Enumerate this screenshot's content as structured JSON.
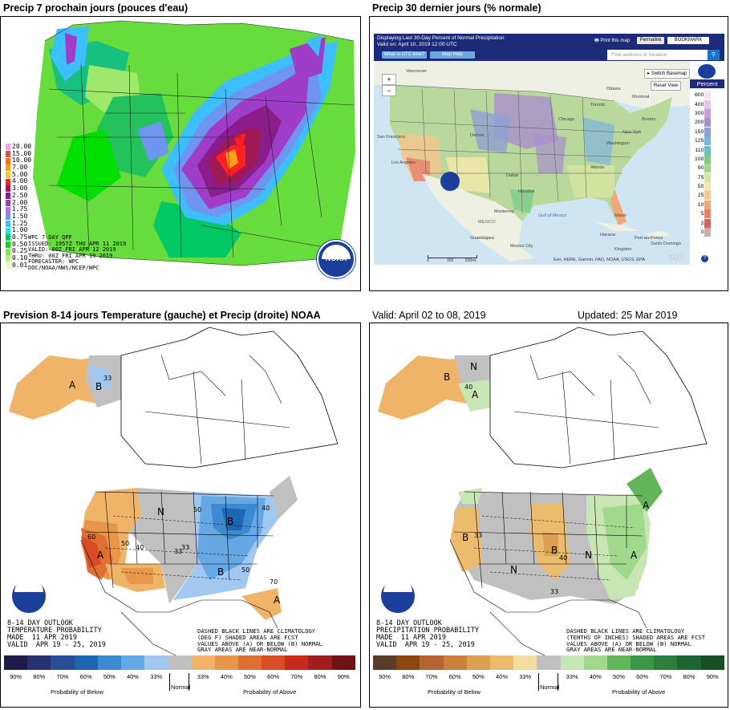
{
  "titles": {
    "tl": "Precip 7 prochain jours (pouces d'eau)",
    "tr": "Precip 30 dernier jours (% normale)",
    "bl": "Prevision 8-14 jours Temperature (gauche) et Precip (droite) NOAA",
    "valid": "Valid: April 02 to 08, 2019",
    "updated": "Updated: 25 Mar 2019"
  },
  "qpf": {
    "legend": [
      {
        "v": "20.00",
        "color": "#ff99ff"
      },
      {
        "v": "15.00",
        "color": "#f04848"
      },
      {
        "v": "10.00",
        "color": "#ff7000"
      },
      {
        "v": "7.00",
        "color": "#ff9d1c"
      },
      {
        "v": "5.00",
        "color": "#ffc81e"
      },
      {
        "v": "4.00",
        "color": "#ff2020"
      },
      {
        "v": "3.00",
        "color": "#a01854"
      },
      {
        "v": "2.50",
        "color": "#8b1c8b"
      },
      {
        "v": "2.00",
        "color": "#9f3cc8"
      },
      {
        "v": "1.75",
        "color": "#b76ee8"
      },
      {
        "v": "1.50",
        "color": "#6e96f0"
      },
      {
        "v": "1.25",
        "color": "#3cbeff"
      },
      {
        "v": "1.00",
        "color": "#1ee6dc"
      },
      {
        "v": "0.75",
        "color": "#00c864"
      },
      {
        "v": "0.50",
        "color": "#00e000"
      },
      {
        "v": "0.25",
        "color": "#70f040"
      },
      {
        "v": "0.10",
        "color": "#b4f078"
      },
      {
        "v": "0.01",
        "color": "#e0ffc0"
      }
    ],
    "info": "WPC 7-DAY QPF\nISSUED: 1957Z THU APR 11 2019\nVALID: 00Z FRI APR 12 2019\nTHRU: 00Z FRI APR 19 2019\nFORECASTER: WPC\nDOC/NOAA/NWS/NCEP/WPC",
    "logo": "NOAA"
  },
  "viewer": {
    "header_line1": "Displaying Last 30-Day Percent of Normal Precipitation",
    "header_line2": "Valid on: April 10, 2019 12:00 UTC",
    "btn_utc": "What is UTC time?",
    "btn_help": "Map Help",
    "print": "Print this map",
    "permalink": "Permalink",
    "bookmark": "BOOKMARK",
    "search_placeholder": "Find address or location",
    "switch_basemap": "Switch Basemap",
    "reset_view": "Reset View",
    "percent": "Percent",
    "zoom_in": "+",
    "zoom_out": "−",
    "attribution": "Esri, HERE, Garmin, FAO, NOAA, USGS, EPA",
    "esri": "esri",
    "scale": [
      "0",
      "300",
      "600mi"
    ],
    "places": [
      "Vancouver",
      "Ottawa",
      "Montreal",
      "Toronto",
      "Boston",
      "New York",
      "Chicago",
      "Washington",
      "Denver",
      "San Francisco",
      "Los Angeles",
      "Dallas",
      "Houston",
      "Monterrey",
      "Atlanta",
      "Miami",
      "Havana",
      "Santo Domingo",
      "Guadalajara",
      "Mexico City",
      "MEXICO",
      "Gulf of Mexico",
      "Kingston",
      "Port-au-Prince"
    ],
    "scale_values": [
      {
        "v": "600",
        "color": "#f3e4f0"
      },
      {
        "v": "400",
        "color": "#e3c8e6"
      },
      {
        "v": "300",
        "color": "#c5a0d8"
      },
      {
        "v": "200",
        "color": "#a890cc"
      },
      {
        "v": "150",
        "color": "#8fa0d4"
      },
      {
        "v": "125",
        "color": "#80b4e0"
      },
      {
        "v": "110",
        "color": "#6cc0c0"
      },
      {
        "v": "100",
        "color": "#7ccc88"
      },
      {
        "v": "90",
        "color": "#a0d88c"
      },
      {
        "v": "75",
        "color": "#d2e6a0"
      },
      {
        "v": "50",
        "color": "#f0e8a8"
      },
      {
        "v": "25",
        "color": "#f4c890"
      },
      {
        "v": "10",
        "color": "#f0a878"
      },
      {
        "v": "5",
        "color": "#e88068"
      },
      {
        "v": "2",
        "color": "#d86058"
      },
      {
        "v": "0",
        "color": "#c8b0a8"
      }
    ]
  },
  "temp_outlook": {
    "text": "8-14 DAY OUTLOOK\nTEMPERATURE PROBABILITY\nMADE  11 APR 2019\nVALID  APR 19 - 25, 2019",
    "note": "DASHED BLACK LINES ARE CLIMATOLOGY\n(DEG F) SHADED AREAS ARE FCST\nVALUES ABOVE (A) OR BELOW (B) NORMAL\nGRAY AREAS ARE NEAR-NORMAL",
    "colors": [
      "#1e1a4a",
      "#28326e",
      "#284e96",
      "#1e66b4",
      "#3c8ad2",
      "#64a8e6",
      "#a0c8f0",
      "#c0c0c0",
      "#f0b468",
      "#e8964a",
      "#e07032",
      "#d84c28",
      "#c8281e",
      "#a01e1e",
      "#6e1414"
    ],
    "labels": [
      "90%",
      "80%",
      "70%",
      "60%",
      "50%",
      "40%",
      "33%",
      "",
      "33%",
      "40%",
      "50%",
      "60%",
      "70%",
      "80%",
      "90%"
    ],
    "normal": "Normal",
    "below": "Probability of Below",
    "above": "Probability of Above",
    "region_labels": [
      "A",
      "B",
      "N",
      "B",
      "B",
      "A",
      "A",
      "50",
      "40",
      "33",
      "50",
      "60",
      "70",
      "40",
      "50",
      "33",
      "33"
    ],
    "logo": "NOAA"
  },
  "precip_outlook": {
    "text": "8-14 DAY OUTLOOK\nPRECIPITATION PROBABILITY\nMADE  11 APR 2019\nVALID  APR 19 - 25, 2019",
    "note": "DASHED BLACK LINES ARE CLIMATOLOGY\n(TENTHS OF INCHES) SHADED AREAS ARE FCST\nVALUES ABOVE (A) OR BELOW (B) NORMAL\nGRAY AREAS ARE NEAR-NORMAL",
    "colors": [
      "#5a3a28",
      "#8c4614",
      "#b46432",
      "#c8823c",
      "#dca050",
      "#ecbc6e",
      "#f5dca0",
      "#c0c0c0",
      "#c8e6b4",
      "#a0d88c",
      "#64b45a",
      "#3c9646",
      "#2d7d3c",
      "#1e6430",
      "#145023"
    ],
    "labels": [
      "90%",
      "80%",
      "70%",
      "60%",
      "50%",
      "40%",
      "33%",
      "",
      "33%",
      "40%",
      "50%",
      "60%",
      "70%",
      "80%",
      "90%"
    ],
    "normal": "Normal",
    "below": "Probability of Below",
    "above": "Probability of Above",
    "region_labels": [
      "B",
      "N",
      "A",
      "B",
      "B",
      "N",
      "N",
      "A",
      "A",
      "33",
      "40",
      "33",
      "40"
    ],
    "logo": "NOAA"
  }
}
